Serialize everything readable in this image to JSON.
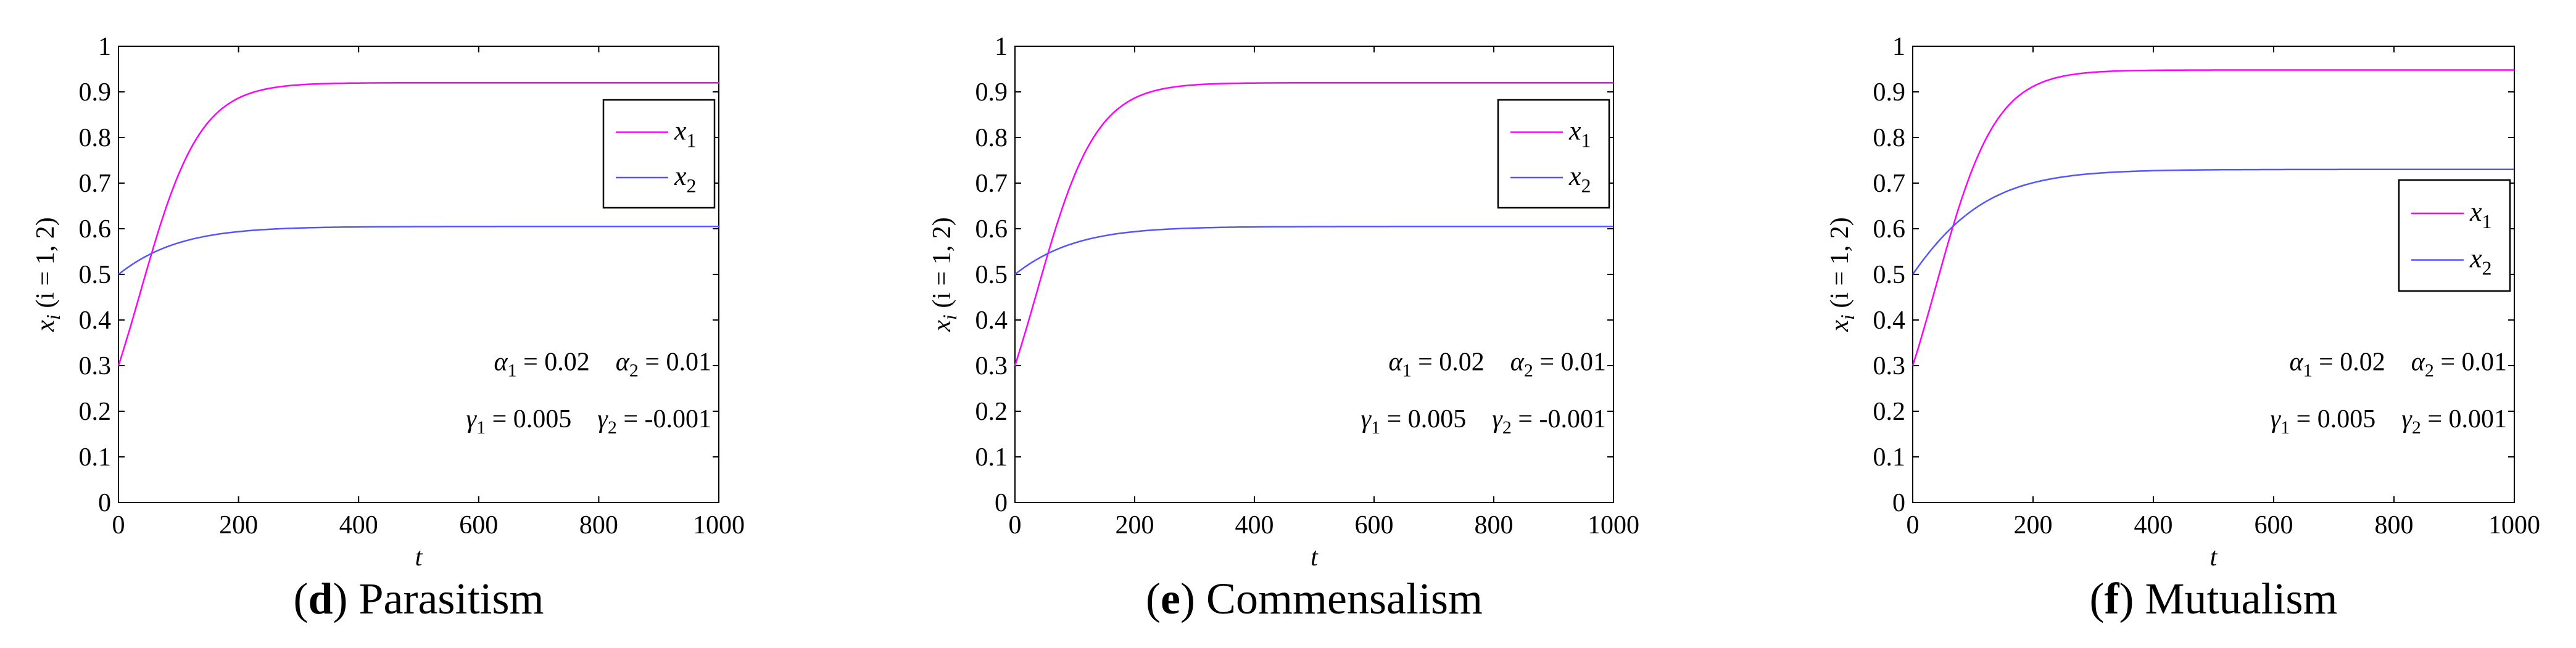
{
  "chart_data": [
    {
      "type": "line",
      "panel_letter": "d",
      "caption": "Parasitism",
      "xlabel": "t",
      "ylabel": "x_i (i = 1, 2)",
      "xlim": [
        0,
        1000
      ],
      "ylim": [
        0,
        1
      ],
      "xticks": [
        "0",
        "200",
        "400",
        "600",
        "800",
        "1000"
      ],
      "yticks": [
        "0",
        "0.1",
        "0.2",
        "0.3",
        "0.4",
        "0.5",
        "0.6",
        "0.7",
        "0.8",
        "0.9",
        "1"
      ],
      "legend_position": "top-right",
      "series": [
        {
          "name": "x1",
          "label_base": "x",
          "label_sub": "1",
          "color": "#ff00ff",
          "x0": 0.3,
          "K": 0.92,
          "r": 0.02
        },
        {
          "name": "x2",
          "label_base": "x",
          "label_sub": "2",
          "color": "#5555ff",
          "x0": 0.5,
          "K": 0.605,
          "r": 0.012
        }
      ],
      "annotations": {
        "line1": [
          {
            "sym": "α",
            "sub": "1",
            "value": " = 0.02"
          },
          {
            "sym": "α",
            "sub": "2",
            "value": " = 0.01"
          }
        ],
        "line2": [
          {
            "sym": "γ",
            "sub": "1",
            "value": " = 0.005"
          },
          {
            "sym": "γ",
            "sub": "2",
            "value": " = -0.001"
          }
        ]
      }
    },
    {
      "type": "line",
      "panel_letter": "e",
      "caption": "Commensalism",
      "xlabel": "t",
      "ylabel": "x_i (i = 1, 2)",
      "xlim": [
        0,
        1000
      ],
      "ylim": [
        0,
        1
      ],
      "xticks": [
        "0",
        "200",
        "400",
        "600",
        "800",
        "1000"
      ],
      "yticks": [
        "0",
        "0.1",
        "0.2",
        "0.3",
        "0.4",
        "0.5",
        "0.6",
        "0.7",
        "0.8",
        "0.9",
        "1"
      ],
      "legend_position": "top-right",
      "series": [
        {
          "name": "x1",
          "label_base": "x",
          "label_sub": "1",
          "color": "#ff00ff",
          "x0": 0.3,
          "K": 0.92,
          "r": 0.02
        },
        {
          "name": "x2",
          "label_base": "x",
          "label_sub": "2",
          "color": "#5555ff",
          "x0": 0.5,
          "K": 0.605,
          "r": 0.012
        }
      ],
      "annotations": {
        "line1": [
          {
            "sym": "α",
            "sub": "1",
            "value": " = 0.02"
          },
          {
            "sym": "α",
            "sub": "2",
            "value": " = 0.01"
          }
        ],
        "line2": [
          {
            "sym": "γ",
            "sub": "1",
            "value": " = 0.005"
          },
          {
            "sym": "γ",
            "sub": "2",
            "value": " = -0.001"
          }
        ]
      }
    },
    {
      "type": "line",
      "panel_letter": "f",
      "caption": "Mutualism",
      "xlabel": "t",
      "ylabel": "x_i (i = 1, 2)",
      "xlim": [
        0,
        1000
      ],
      "ylim": [
        0,
        1
      ],
      "xticks": [
        "0",
        "200",
        "400",
        "600",
        "800",
        "1000"
      ],
      "yticks": [
        "0",
        "0.1",
        "0.2",
        "0.3",
        "0.4",
        "0.5",
        "0.6",
        "0.7",
        "0.8",
        "0.9",
        "1"
      ],
      "legend_position": "right",
      "series": [
        {
          "name": "x1",
          "label_base": "x",
          "label_sub": "1",
          "color": "#ff00ff",
          "x0": 0.3,
          "K": 0.948,
          "r": 0.02
        },
        {
          "name": "x2",
          "label_base": "x",
          "label_sub": "2",
          "color": "#5555ff",
          "x0": 0.5,
          "K": 0.73,
          "r": 0.012
        }
      ],
      "annotations": {
        "line1": [
          {
            "sym": "α",
            "sub": "1",
            "value": " = 0.02"
          },
          {
            "sym": "α",
            "sub": "2",
            "value": " = 0.01"
          }
        ],
        "line2": [
          {
            "sym": "γ",
            "sub": "1",
            "value": " = 0.005"
          },
          {
            "sym": "γ",
            "sub": "2",
            "value": " = 0.001"
          }
        ]
      }
    }
  ]
}
